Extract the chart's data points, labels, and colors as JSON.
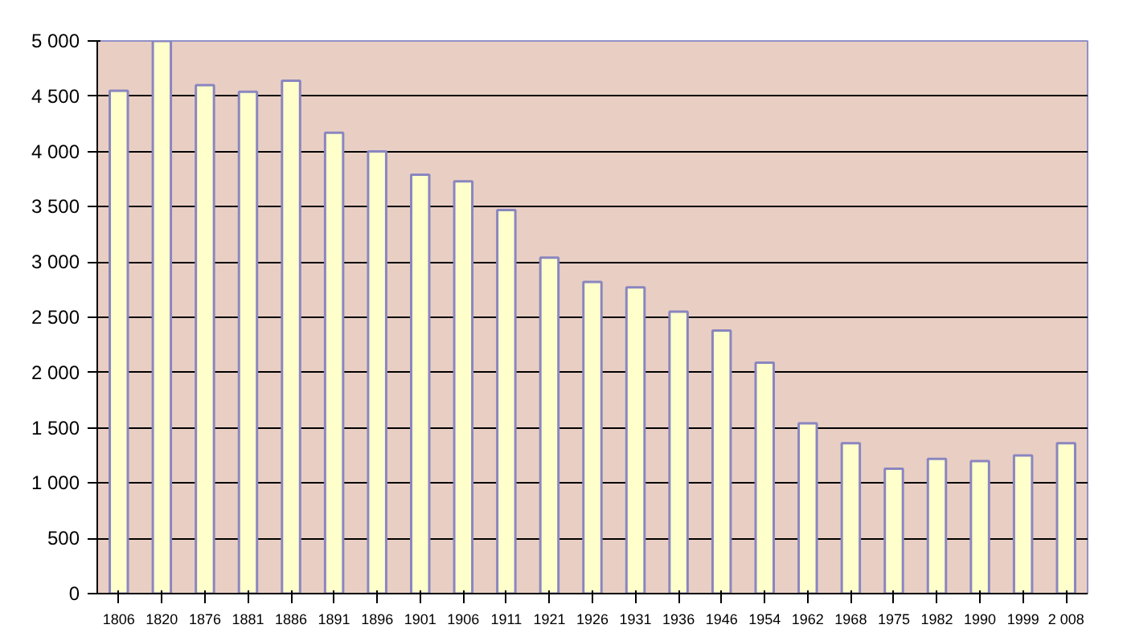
{
  "chart_data": {
    "type": "bar",
    "categories": [
      "1806",
      "1820",
      "1876",
      "1881",
      "1886",
      "1891",
      "1896",
      "1901",
      "1906",
      "1911",
      "1921",
      "1926",
      "1931",
      "1936",
      "1946",
      "1954",
      "1962",
      "1968",
      "1975",
      "1982",
      "1990",
      "1999",
      "2 008"
    ],
    "values": [
      4550,
      5000,
      4600,
      4540,
      4640,
      4170,
      4000,
      3790,
      3730,
      3470,
      3040,
      2820,
      2770,
      2550,
      2380,
      2090,
      1540,
      1360,
      1130,
      1220,
      1200,
      1250,
      1360
    ],
    "color": "#ffffcc",
    "ylim": [
      0,
      5000
    ],
    "yticks": [
      0,
      500,
      {
        "value": 1000,
        "label": "1 000"
      },
      {
        "value": 1500,
        "label": "1 500"
      },
      {
        "value": 2000,
        "label": "2 000"
      },
      {
        "value": 2500,
        "label": "2 500"
      },
      {
        "value": 3000,
        "label": "3 000"
      },
      {
        "value": 3500,
        "label": "3 500"
      },
      {
        "value": 4000,
        "label": "4 000"
      },
      {
        "value": 4500,
        "label": "4 500"
      },
      {
        "value": 5000,
        "label": "5 000"
      }
    ],
    "grid": "y"
  }
}
